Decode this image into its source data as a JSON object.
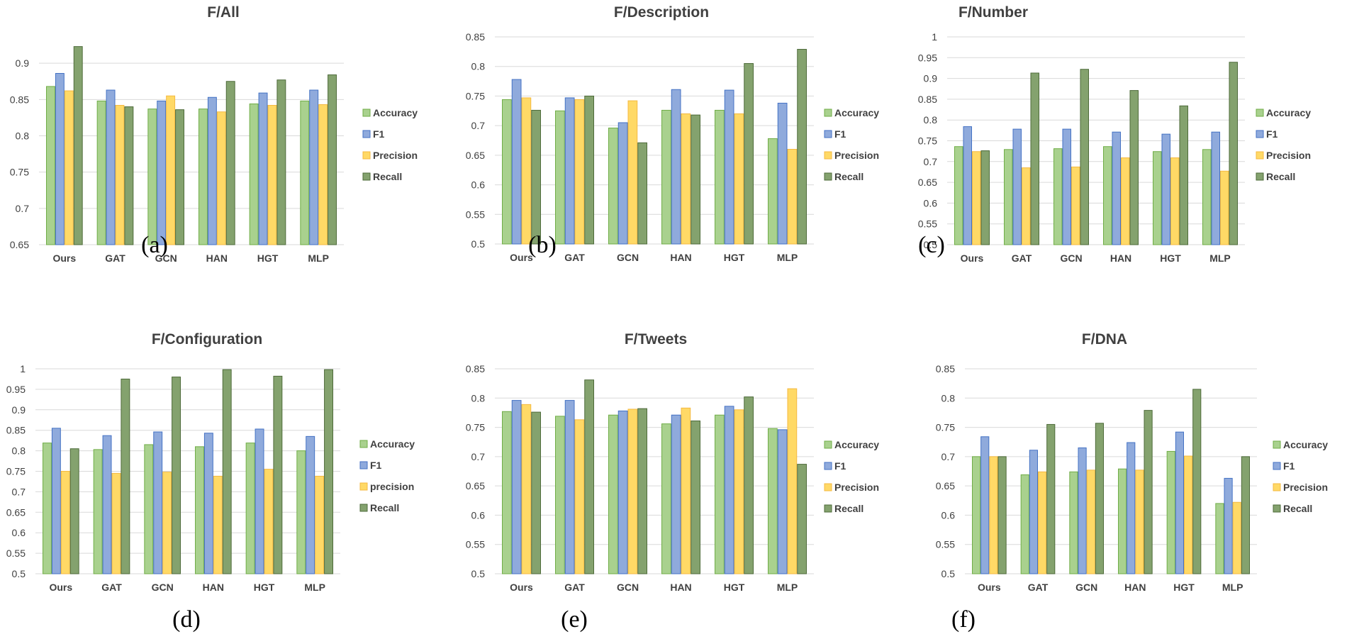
{
  "colors": {
    "accuracy": "#a9d18e",
    "f1": "#8faadc",
    "precision": "#ffd966",
    "recall": "#84a26e",
    "accuracy_stroke": "#70ad47",
    "f1_stroke": "#4472c4",
    "precision_stroke": "#f4b942",
    "recall_stroke": "#4e6b3a",
    "grid": "#d9d9d9",
    "text": "#404040"
  },
  "chart_data": [
    {
      "type": "bar",
      "title": "F/All",
      "caption": "(a)",
      "categories": [
        "Ours",
        "GAT",
        "GCN",
        "HAN",
        "HGT",
        "MLP"
      ],
      "ylim": [
        0.65,
        0.95
      ],
      "yticks": [
        "0.65",
        "0.7",
        "0.75",
        "0.8",
        "0.85",
        "0.9"
      ],
      "yticks_values": [
        0.65,
        0.7,
        0.75,
        0.8,
        0.85,
        0.9
      ],
      "grid": true,
      "legend_position": "right",
      "series": [
        {
          "name": "Accuracy",
          "values": [
            0.868,
            0.848,
            0.837,
            0.837,
            0.844,
            0.848
          ]
        },
        {
          "name": "F1",
          "values": [
            0.886,
            0.863,
            0.848,
            0.853,
            0.859,
            0.863
          ]
        },
        {
          "name": "Precision",
          "values": [
            0.862,
            0.842,
            0.855,
            0.833,
            0.842,
            0.843
          ]
        },
        {
          "name": "Recall",
          "values": [
            0.923,
            0.84,
            0.836,
            0.875,
            0.877,
            0.884
          ]
        }
      ]
    },
    {
      "type": "bar",
      "title": "F/Description",
      "caption": "(b)",
      "categories": [
        "Ours",
        "GAT",
        "GCN",
        "HAN",
        "HGT",
        "MLP"
      ],
      "ylim": [
        0.5,
        0.85
      ],
      "yticks": [
        "0.5",
        "0.55",
        "0.6",
        "0.65",
        "0.7",
        "0.75",
        "0.8",
        "0.85"
      ],
      "yticks_values": [
        0.5,
        0.55,
        0.6,
        0.65,
        0.7,
        0.75,
        0.8,
        0.85
      ],
      "grid": true,
      "legend_position": "right",
      "series": [
        {
          "name": "Accuracy",
          "values": [
            0.744,
            0.725,
            0.696,
            0.726,
            0.726,
            0.678
          ]
        },
        {
          "name": "F1",
          "values": [
            0.778,
            0.747,
            0.705,
            0.761,
            0.76,
            0.738
          ]
        },
        {
          "name": "Precision",
          "values": [
            0.747,
            0.744,
            0.742,
            0.72,
            0.72,
            0.66
          ]
        },
        {
          "name": "Recall",
          "values": [
            0.726,
            0.75,
            0.671,
            0.718,
            0.805,
            0.829
          ]
        }
      ]
    },
    {
      "type": "bar",
      "title": "F/Number",
      "caption": "(c)",
      "categories": [
        "Ours",
        "GAT",
        "GCN",
        "HAN",
        "HGT",
        "MLP"
      ],
      "ylim": [
        0.5,
        1.0
      ],
      "yticks": [
        "0.5",
        "0.55",
        "0.6",
        "0.65",
        "0.7",
        "0.75",
        "0.8",
        "0.85",
        "0.9",
        "0.95",
        "1"
      ],
      "yticks_values": [
        0.5,
        0.55,
        0.6,
        0.65,
        0.7,
        0.75,
        0.8,
        0.85,
        0.9,
        0.95,
        1.0
      ],
      "grid": true,
      "legend_position": "right",
      "series": [
        {
          "name": "Accuracy",
          "values": [
            0.736,
            0.729,
            0.731,
            0.736,
            0.724,
            0.729
          ]
        },
        {
          "name": "F1",
          "values": [
            0.784,
            0.778,
            0.778,
            0.771,
            0.766,
            0.771
          ]
        },
        {
          "name": "Precision",
          "values": [
            0.724,
            0.685,
            0.687,
            0.709,
            0.709,
            0.677
          ]
        },
        {
          "name": "Recall",
          "values": [
            0.726,
            0.913,
            0.922,
            0.871,
            0.834,
            0.939
          ]
        }
      ]
    },
    {
      "type": "bar",
      "title": "F/Configuration",
      "caption": "(d)",
      "categories": [
        "Ours",
        "GAT",
        "GCN",
        "HAN",
        "HGT",
        "MLP"
      ],
      "ylim": [
        0.5,
        1.0
      ],
      "yticks": [
        "0.5",
        "0.55",
        "0.6",
        "0.65",
        "0.7",
        "0.75",
        "0.8",
        "0.85",
        "0.9",
        "0.95",
        "1"
      ],
      "yticks_values": [
        0.5,
        0.55,
        0.6,
        0.65,
        0.7,
        0.75,
        0.8,
        0.85,
        0.9,
        0.95,
        1.0
      ],
      "grid": true,
      "legend_position": "right",
      "series": [
        {
          "name": "Accuracy",
          "values": [
            0.819,
            0.803,
            0.815,
            0.81,
            0.819,
            0.8
          ]
        },
        {
          "name": "F1",
          "values": [
            0.855,
            0.837,
            0.846,
            0.843,
            0.853,
            0.835
          ]
        },
        {
          "name": "precision",
          "values": [
            0.75,
            0.745,
            0.748,
            0.738,
            0.755,
            0.738
          ]
        },
        {
          "name": "Recall",
          "values": [
            0.805,
            0.975,
            0.98,
            0.998,
            0.982,
            0.998
          ]
        }
      ]
    },
    {
      "type": "bar",
      "title": "F/Tweets",
      "caption": "(e)",
      "categories": [
        "Ours",
        "GAT",
        "GCN",
        "HAN",
        "HGT",
        "MLP"
      ],
      "ylim": [
        0.5,
        0.85
      ],
      "yticks": [
        "0.5",
        "0.55",
        "0.6",
        "0.65",
        "0.7",
        "0.75",
        "0.8",
        "0.85"
      ],
      "yticks_values": [
        0.5,
        0.55,
        0.6,
        0.65,
        0.7,
        0.75,
        0.8,
        0.85
      ],
      "grid": true,
      "legend_position": "right",
      "series": [
        {
          "name": "Accuracy",
          "values": [
            0.777,
            0.769,
            0.771,
            0.756,
            0.771,
            0.748
          ]
        },
        {
          "name": "F1",
          "values": [
            0.796,
            0.796,
            0.778,
            0.771,
            0.786,
            0.746
          ]
        },
        {
          "name": "Precision",
          "values": [
            0.789,
            0.763,
            0.781,
            0.783,
            0.78,
            0.816
          ]
        },
        {
          "name": "Recall",
          "values": [
            0.776,
            0.831,
            0.782,
            0.761,
            0.802,
            0.687
          ]
        }
      ]
    },
    {
      "type": "bar",
      "title": "F/DNA",
      "caption": "(f)",
      "categories": [
        "Ours",
        "GAT",
        "GCN",
        "HAN",
        "HGT",
        "MLP"
      ],
      "ylim": [
        0.5,
        0.85
      ],
      "yticks": [
        "0.5",
        "0.55",
        "0.6",
        "0.65",
        "0.7",
        "0.75",
        "0.8",
        "0.85"
      ],
      "yticks_values": [
        0.5,
        0.55,
        0.6,
        0.65,
        0.7,
        0.75,
        0.8,
        0.85
      ],
      "grid": true,
      "legend_position": "right",
      "series": [
        {
          "name": "Accuracy",
          "values": [
            0.7,
            0.669,
            0.674,
            0.679,
            0.709,
            0.62
          ]
        },
        {
          "name": "F1",
          "values": [
            0.734,
            0.711,
            0.715,
            0.724,
            0.742,
            0.663
          ]
        },
        {
          "name": "Precision",
          "values": [
            0.7,
            0.674,
            0.677,
            0.677,
            0.701,
            0.622
          ]
        },
        {
          "name": "Recall",
          "values": [
            0.7,
            0.755,
            0.757,
            0.779,
            0.815,
            0.7
          ]
        }
      ]
    }
  ]
}
